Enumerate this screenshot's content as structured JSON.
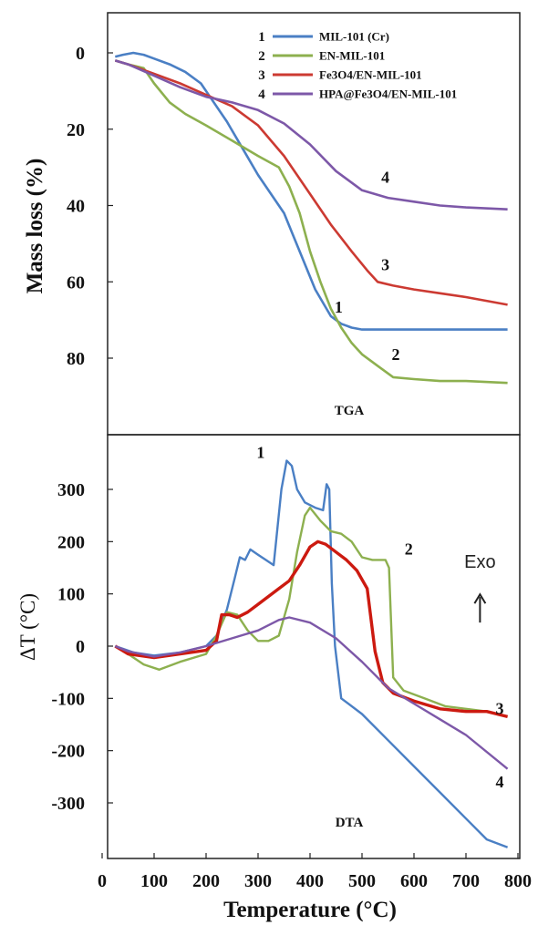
{
  "chart_data": [
    {
      "type": "line",
      "panel_label": "TGA",
      "ylabel": "Mass loss (%)",
      "xlabel": "Temperature (°C)",
      "xlim": [
        0,
        800
      ],
      "ylim": [
        100,
        -10
      ],
      "y_inverted": true,
      "yticks": [
        "0",
        "20",
        "40",
        "60",
        "80"
      ],
      "ytick_values": [
        0,
        20,
        40,
        60,
        80
      ],
      "legend_position": "top-right",
      "series": [
        {
          "name": "MIL-101 (Cr)",
          "number": "1",
          "color": "#4a7fc4",
          "x": [
            25,
            40,
            60,
            80,
            100,
            130,
            160,
            190,
            210,
            240,
            270,
            300,
            330,
            350,
            380,
            410,
            440,
            460,
            480,
            500,
            550,
            600,
            650,
            700,
            780
          ],
          "y": [
            1,
            0.5,
            0,
            0.5,
            1.5,
            3,
            5,
            8,
            12,
            18,
            25,
            32,
            38,
            42,
            52,
            62,
            69,
            71,
            72,
            72.5,
            72.5,
            72.5,
            72.5,
            72.5,
            72.5
          ],
          "curve_label": "1",
          "label_x": 455,
          "label_y": 68
        },
        {
          "name": "EN-MIL-101",
          "number": "2",
          "color": "#8db04f",
          "x": [
            25,
            50,
            80,
            100,
            130,
            160,
            200,
            250,
            300,
            340,
            360,
            380,
            400,
            420,
            440,
            460,
            480,
            500,
            530,
            560,
            600,
            650,
            700,
            780
          ],
          "y": [
            2,
            3,
            4,
            8,
            13,
            16,
            19,
            23,
            27,
            30,
            35,
            42,
            52,
            60,
            67,
            72,
            76,
            79,
            82,
            85,
            85.5,
            86,
            86,
            86.5
          ],
          "curve_label": "2",
          "label_x": 565,
          "label_y": 80.5
        },
        {
          "name": "Fe3O4/EN-MIL-101",
          "number": "3",
          "color": "#cc3a32",
          "x": [
            25,
            50,
            100,
            150,
            200,
            250,
            300,
            350,
            400,
            440,
            480,
            510,
            530,
            560,
            600,
            650,
            700,
            780
          ],
          "y": [
            2,
            3,
            5.5,
            8,
            11,
            14,
            19,
            27,
            37,
            45,
            52,
            57,
            60,
            61,
            62,
            63,
            64,
            66
          ],
          "curve_label": "3",
          "label_x": 545,
          "label_y": 57
        },
        {
          "name": "HPA@Fe3O4/EN-MIL-101",
          "number": "4",
          "color": "#7d58a8",
          "x": [
            25,
            50,
            100,
            150,
            200,
            250,
            300,
            350,
            400,
            450,
            500,
            550,
            600,
            650,
            700,
            780
          ],
          "y": [
            2,
            3,
            6,
            9,
            11.5,
            13,
            15,
            18.5,
            24,
            31,
            36,
            38,
            39,
            40,
            40.5,
            41
          ],
          "curve_label": "4",
          "label_x": 545,
          "label_y": 34
        }
      ],
      "legend": [
        {
          "number": "1",
          "name": "MIL-101 (Cr)",
          "color": "#4a7fc4"
        },
        {
          "number": "2",
          "name": "EN-MIL-101",
          "color": "#8db04f"
        },
        {
          "number": "3",
          "name": "Fe3O4/EN-MIL-101",
          "color": "#cc3a32"
        },
        {
          "number": "4",
          "name": "HPA@Fe3O4/EN-MIL-101",
          "color": "#7d58a8"
        }
      ]
    },
    {
      "type": "line",
      "panel_label": "DTA",
      "ylabel": "ΔT (°C)",
      "xlabel": "Temperature (°C)",
      "xlim": [
        0,
        800
      ],
      "ylim": [
        -400,
        390
      ],
      "yticks": [
        "300",
        "200",
        "100",
        "0",
        "-100",
        "-200",
        "-300"
      ],
      "ytick_values": [
        300,
        200,
        100,
        0,
        -100,
        -200,
        -300
      ],
      "xticks": [
        "0",
        "100",
        "200",
        "300",
        "400",
        "500",
        "600",
        "700",
        "800"
      ],
      "xtick_values": [
        0,
        100,
        200,
        300,
        400,
        500,
        600,
        700,
        800
      ],
      "annotation": {
        "text": "Exo",
        "arrow": "up-arrow",
        "x": 727,
        "y": 80
      },
      "series": [
        {
          "name": "MIL-101 (Cr)",
          "number": "1",
          "color": "#4a7fc4",
          "x": [
            25,
            40,
            60,
            100,
            150,
            200,
            220,
            240,
            255,
            265,
            275,
            285,
            300,
            315,
            330,
            345,
            355,
            365,
            375,
            390,
            410,
            425,
            432,
            437,
            442,
            448,
            460,
            500,
            550,
            600,
            650,
            700,
            740,
            780
          ],
          "y": [
            0,
            -5,
            -12,
            -18,
            -12,
            0,
            20,
            70,
            130,
            170,
            165,
            185,
            175,
            165,
            155,
            300,
            355,
            345,
            300,
            275,
            265,
            260,
            310,
            300,
            120,
            0,
            -100,
            -130,
            -180,
            -230,
            -280,
            -330,
            -370,
            -385
          ],
          "curve_label": "1",
          "label_x": 305,
          "label_y": 360
        },
        {
          "name": "EN-MIL-101",
          "number": "2",
          "color": "#8db04f",
          "x": [
            25,
            50,
            80,
            110,
            150,
            200,
            220,
            240,
            260,
            280,
            300,
            320,
            340,
            360,
            375,
            390,
            400,
            420,
            440,
            460,
            480,
            500,
            520,
            545,
            552,
            560,
            580,
            620,
            660,
            700,
            740,
            780
          ],
          "y": [
            0,
            -15,
            -35,
            -45,
            -30,
            -15,
            20,
            65,
            60,
            30,
            10,
            10,
            20,
            90,
            180,
            250,
            265,
            240,
            220,
            215,
            200,
            170,
            165,
            165,
            150,
            -60,
            -85,
            -100,
            -115,
            -120,
            -125,
            -135
          ],
          "curve_label": "2",
          "label_x": 590,
          "label_y": 175
        },
        {
          "name": "Fe3O4/EN-MIL-101",
          "number": "3",
          "color": "#cc1a10",
          "x": [
            25,
            50,
            100,
            150,
            200,
            220,
            230,
            245,
            260,
            280,
            300,
            320,
            340,
            360,
            380,
            400,
            415,
            430,
            450,
            470,
            490,
            510,
            525,
            540,
            560,
            600,
            650,
            700,
            740,
            780
          ],
          "y": [
            0,
            -15,
            -22,
            -15,
            -8,
            10,
            60,
            60,
            55,
            65,
            80,
            95,
            110,
            125,
            155,
            190,
            200,
            195,
            180,
            165,
            145,
            110,
            -10,
            -70,
            -90,
            -105,
            -120,
            -125,
            -125,
            -135
          ],
          "curve_label": "3",
          "label_x": 765,
          "label_y": -130
        },
        {
          "name": "HPA@Fe3O4/EN-MIL-101",
          "number": "4",
          "color": "#7d58a8",
          "x": [
            25,
            50,
            100,
            150,
            200,
            250,
            300,
            340,
            360,
            400,
            450,
            500,
            550,
            600,
            650,
            700,
            780
          ],
          "y": [
            0,
            -10,
            -20,
            -12,
            0,
            15,
            30,
            50,
            55,
            45,
            15,
            -30,
            -80,
            -110,
            -140,
            -170,
            -235
          ],
          "curve_label": "4",
          "label_x": 765,
          "label_y": -270
        }
      ]
    }
  ]
}
